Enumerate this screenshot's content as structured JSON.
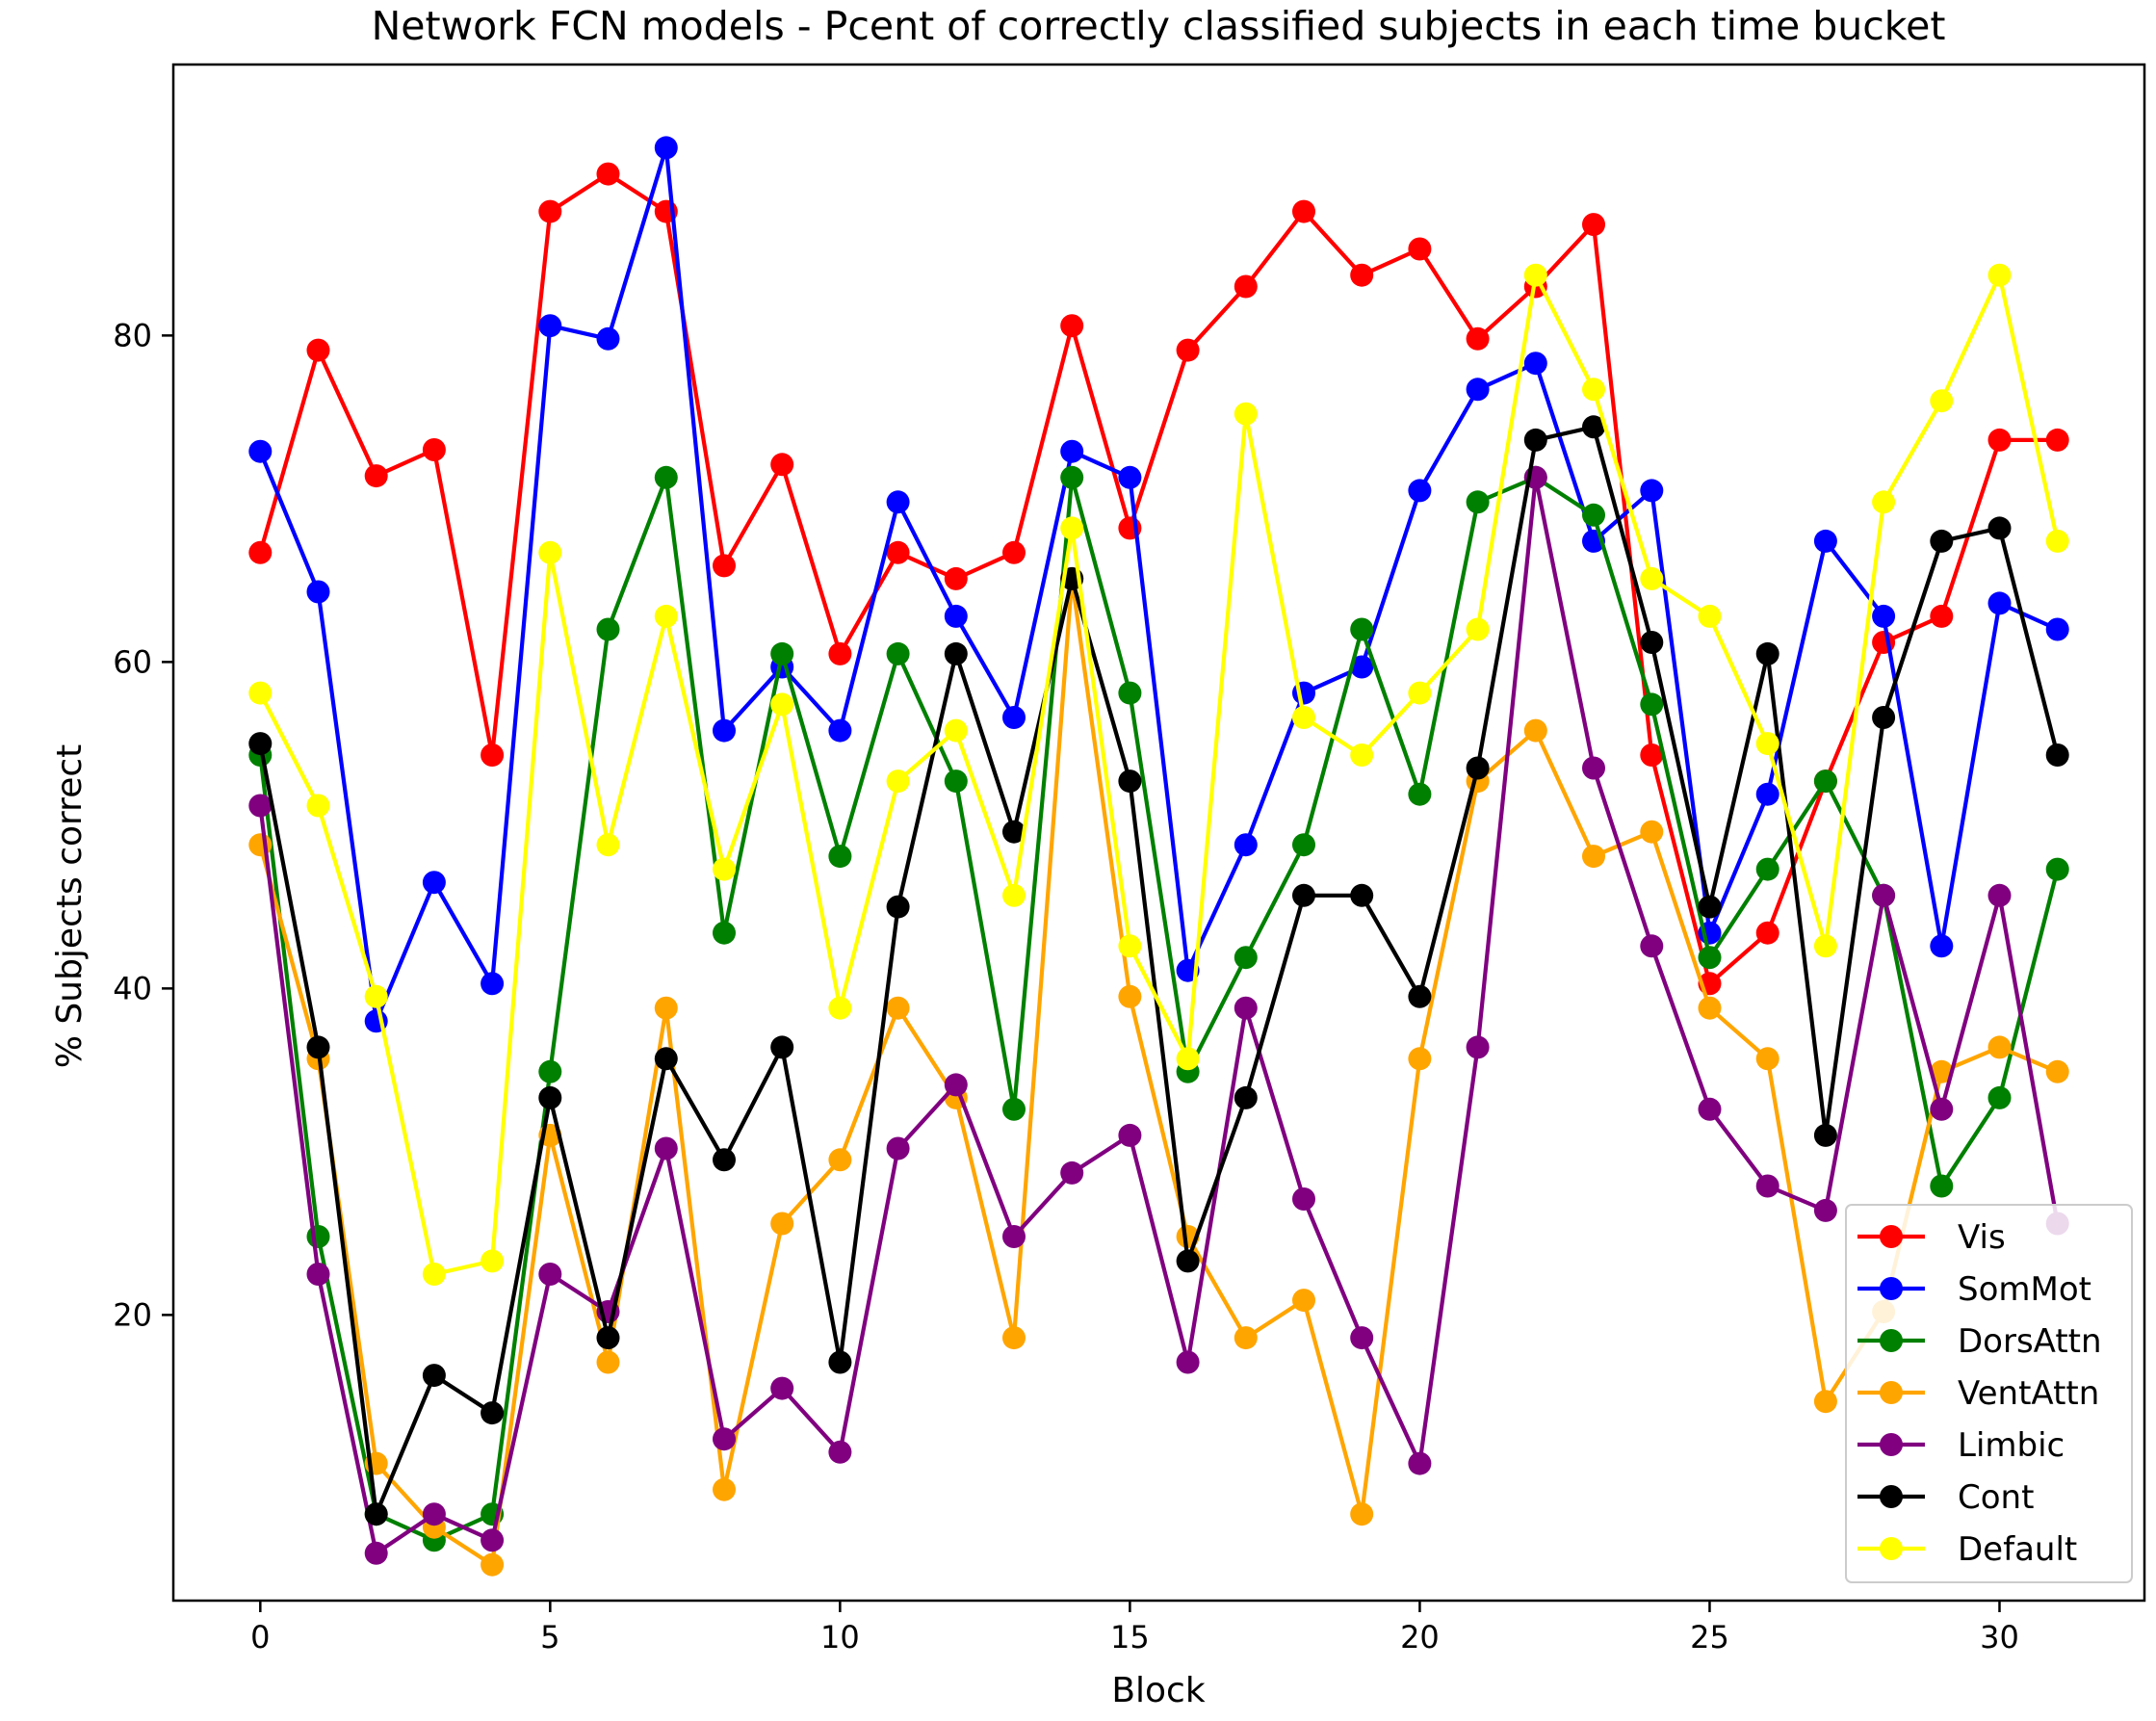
{
  "chart_data": {
    "type": "line",
    "title": "Network FCN models - Pcent of correctly classified subjects in each time bucket",
    "xlabel": "Block",
    "ylabel": "% Subjects correct",
    "xlim": [
      -1.5,
      32.5
    ],
    "ylim": [
      2.5,
      96.6
    ],
    "xticks": [
      0,
      5,
      10,
      15,
      20,
      25,
      30
    ],
    "yticks": [
      20,
      40,
      60,
      80
    ],
    "grid": false,
    "legend_position": "lower-right",
    "x": [
      0,
      1,
      2,
      3,
      4,
      5,
      6,
      7,
      8,
      9,
      10,
      11,
      12,
      13,
      14,
      15,
      16,
      17,
      18,
      19,
      20,
      21,
      22,
      23,
      24,
      25,
      26,
      27,
      28,
      29,
      30,
      31
    ],
    "series": [
      {
        "name": "Vis",
        "color": "#ff0000",
        "values": [
          66.7,
          79.1,
          71.4,
          73.0,
          54.3,
          87.6,
          89.9,
          87.6,
          65.9,
          72.1,
          60.5,
          66.7,
          65.1,
          66.7,
          80.6,
          68.2,
          79.1,
          83.0,
          87.6,
          83.7,
          85.3,
          79.8,
          83.0,
          86.8,
          54.3,
          40.3,
          43.4,
          52.7,
          61.2,
          62.8,
          73.6,
          73.6
        ]
      },
      {
        "name": "SomMot",
        "color": "#0000ff",
        "values": [
          72.9,
          64.3,
          38.0,
          46.5,
          40.3,
          80.6,
          79.8,
          91.5,
          55.8,
          59.7,
          55.8,
          69.8,
          62.8,
          56.6,
          72.9,
          71.3,
          41.1,
          48.8,
          58.1,
          59.7,
          70.5,
          76.7,
          78.3,
          67.4,
          70.5,
          43.4,
          51.9,
          67.4,
          62.8,
          42.6,
          63.6,
          62.0
        ]
      },
      {
        "name": "DorsAttn",
        "color": "#008000",
        "values": [
          54.3,
          24.8,
          7.8,
          6.2,
          7.8,
          34.9,
          62.0,
          71.3,
          43.4,
          60.5,
          48.1,
          60.5,
          52.7,
          32.6,
          71.3,
          58.1,
          34.9,
          41.9,
          48.8,
          62.0,
          51.9,
          69.8,
          71.3,
          69.0,
          57.4,
          41.9,
          47.3,
          52.7,
          45.7,
          27.9,
          33.3,
          47.3
        ]
      },
      {
        "name": "VentAttn",
        "color": "#ffa500",
        "values": [
          48.8,
          35.7,
          10.9,
          7.0,
          4.7,
          31.0,
          17.1,
          38.8,
          9.3,
          25.6,
          29.5,
          38.8,
          33.3,
          18.6,
          65.1,
          39.5,
          24.8,
          18.6,
          20.9,
          7.8,
          35.7,
          52.7,
          55.8,
          48.1,
          49.6,
          38.8,
          35.7,
          14.7,
          20.2,
          34.9,
          36.4,
          34.9
        ]
      },
      {
        "name": "Limbic",
        "color": "#800080",
        "values": [
          51.2,
          22.5,
          5.4,
          7.8,
          6.2,
          22.5,
          20.2,
          30.2,
          12.4,
          15.5,
          11.6,
          30.2,
          34.1,
          24.8,
          28.7,
          31.0,
          17.1,
          38.8,
          27.1,
          18.6,
          10.9,
          36.4,
          71.3,
          53.5,
          42.6,
          32.6,
          27.9,
          26.4,
          45.7,
          32.6,
          45.7,
          25.6
        ]
      },
      {
        "name": "Cont",
        "color": "#000000",
        "values": [
          55.0,
          36.4,
          7.8,
          16.3,
          14.0,
          33.3,
          18.6,
          35.7,
          29.5,
          36.4,
          17.1,
          45.0,
          60.5,
          49.6,
          65.1,
          52.7,
          23.3,
          33.3,
          45.7,
          45.7,
          39.5,
          53.5,
          73.6,
          74.4,
          61.2,
          45.0,
          60.5,
          31.0,
          56.6,
          67.4,
          68.2,
          54.3
        ]
      },
      {
        "name": "Default",
        "color": "#ffff00",
        "values": [
          58.1,
          51.2,
          39.5,
          22.5,
          23.3,
          66.7,
          48.8,
          62.8,
          47.3,
          57.4,
          38.8,
          52.7,
          55.8,
          45.7,
          68.2,
          42.6,
          35.7,
          75.2,
          56.6,
          54.3,
          58.1,
          62.0,
          83.7,
          76.7,
          65.1,
          62.8,
          55.0,
          42.6,
          69.8,
          76.0,
          83.7,
          67.4
        ]
      }
    ]
  }
}
